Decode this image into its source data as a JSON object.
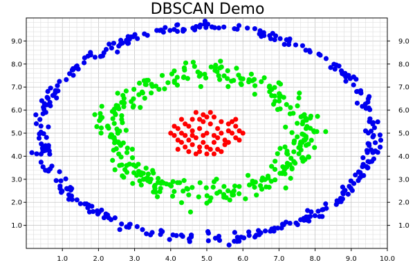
{
  "chart_data": {
    "type": "scatter",
    "title": "DBSCAN Demo",
    "xlabel": "",
    "ylabel": "",
    "xlim": [
      0,
      10
    ],
    "ylim": [
      0,
      10
    ],
    "x_ticks": [
      1.0,
      2.0,
      3.0,
      4.0,
      5.0,
      6.0,
      7.0,
      8.0,
      9.0,
      10.0
    ],
    "y_ticks": [
      1.0,
      2.0,
      3.0,
      4.0,
      5.0,
      6.0,
      7.0,
      8.0,
      9.0
    ],
    "x_tick_labels": [
      "1.0",
      "2.0",
      "3.0",
      "4.0",
      "5.0",
      "6.0",
      "7.0",
      "8.0",
      "9.0",
      "10.0"
    ],
    "y_tick_labels": [
      "1.0",
      "2.0",
      "3.0",
      "4.0",
      "5.0",
      "6.0",
      "7.0",
      "8.0",
      "9.0"
    ],
    "grid": true,
    "right_axis_labels": true,
    "series": [
      {
        "color": "#ff0000",
        "shape": "center blob",
        "center": [
          5.0,
          5.0
        ],
        "radius_x": 1.0,
        "radius_y": 0.8,
        "points": [
          [
            5.0,
            5.0
          ],
          [
            4.8,
            5.2
          ],
          [
            5.2,
            4.9
          ],
          [
            4.6,
            5.1
          ],
          [
            5.4,
            5.0
          ],
          [
            4.9,
            4.6
          ],
          [
            5.1,
            5.4
          ],
          [
            4.7,
            4.8
          ],
          [
            5.3,
            5.2
          ],
          [
            4.5,
            5.3
          ],
          [
            5.5,
            4.7
          ],
          [
            4.4,
            4.9
          ],
          [
            5.6,
            5.1
          ],
          [
            4.9,
            5.5
          ],
          [
            5.0,
            4.4
          ],
          [
            4.3,
            5.0
          ],
          [
            5.7,
            5.0
          ],
          [
            4.6,
            4.5
          ],
          [
            5.4,
            5.5
          ],
          [
            4.2,
            5.2
          ],
          [
            5.8,
            4.8
          ],
          [
            4.8,
            4.2
          ],
          [
            5.2,
            5.7
          ],
          [
            4.1,
            4.9
          ],
          [
            5.9,
            5.1
          ],
          [
            4.6,
            5.6
          ],
          [
            5.3,
            4.3
          ],
          [
            4.3,
            4.6
          ],
          [
            5.6,
            5.4
          ],
          [
            4.9,
            5.8
          ],
          [
            5.0,
            4.1
          ],
          [
            4.4,
            5.4
          ],
          [
            5.5,
            4.5
          ],
          [
            4.7,
            4.1
          ],
          [
            5.2,
            4.1
          ],
          [
            4.2,
            4.3
          ],
          [
            5.7,
            5.5
          ],
          [
            4.5,
            4.2
          ],
          [
            5.4,
            4.2
          ],
          [
            4.0,
            5.0
          ],
          [
            6.0,
            5.0
          ],
          [
            4.7,
            5.9
          ],
          [
            5.1,
            5.9
          ],
          [
            4.3,
            5.6
          ],
          [
            5.8,
            5.3
          ],
          [
            4.1,
            5.3
          ],
          [
            5.9,
            4.7
          ],
          [
            4.8,
            4.4
          ],
          [
            5.2,
            4.6
          ],
          [
            4.5,
            4.7
          ],
          [
            5.0,
            5.7
          ],
          [
            4.6,
            4.9
          ],
          [
            5.3,
            4.8
          ],
          [
            4.8,
            5.6
          ],
          [
            5.1,
            4.3
          ],
          [
            4.4,
            4.4
          ],
          [
            5.6,
            4.6
          ],
          [
            4.2,
            4.7
          ],
          [
            5.8,
            5.6
          ],
          [
            4.9,
            4.9
          ]
        ]
      },
      {
        "color": "#00ee00",
        "shape": "middle ring",
        "center": [
          5.0,
          5.0
        ],
        "radius_x": 2.7,
        "radius_y": 2.6,
        "points_count": 340
      },
      {
        "color": "#0000ee",
        "shape": "outer ring",
        "center": [
          5.0,
          5.0
        ],
        "radius_x": 4.6,
        "radius_y": 4.6,
        "points_count": 360
      }
    ]
  }
}
